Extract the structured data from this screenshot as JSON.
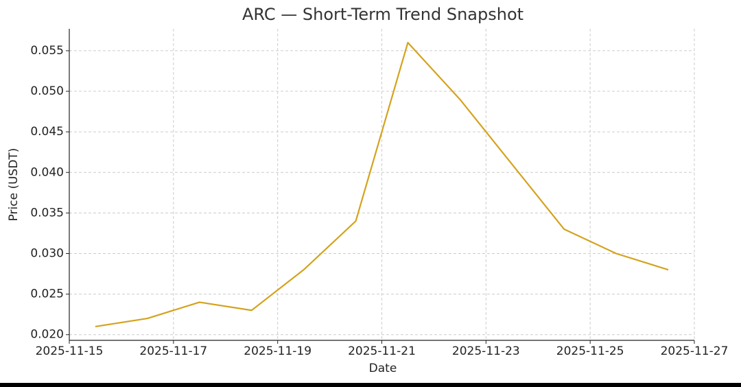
{
  "chart_data": {
    "type": "line",
    "title": "ARC — Short-Term Trend Snapshot",
    "x_label": "Date",
    "y_label": "Price (USDT)",
    "x": [
      "2025-11-15T12:00",
      "2025-11-16T12:00",
      "2025-11-17T12:00",
      "2025-11-18T12:00",
      "2025-11-19T12:00",
      "2025-11-20T12:00",
      "2025-11-21T12:00",
      "2025-11-22T12:00",
      "2025-11-23T12:00",
      "2025-11-24T12:00",
      "2025-11-25T12:00",
      "2025-11-26T12:00"
    ],
    "series": [
      {
        "color": "#d4a21c",
        "values": [
          0.021,
          0.022,
          0.024,
          0.023,
          0.028,
          0.034,
          0.056,
          0.049,
          0.041,
          0.033,
          0.03,
          0.028
        ]
      }
    ],
    "xlim": [
      "2025-11-15",
      "2025-11-27"
    ],
    "xticks": [
      "2025-11-15",
      "2025-11-17",
      "2025-11-19",
      "2025-11-21",
      "2025-11-23",
      "2025-11-25",
      "2025-11-27"
    ],
    "ylim": [
      0.0193,
      0.0577
    ],
    "yticks": [
      {
        "value": 0.02,
        "label": "0.020"
      },
      {
        "value": 0.025,
        "label": "0.025"
      },
      {
        "value": 0.03,
        "label": "0.030"
      },
      {
        "value": 0.035,
        "label": "0.035"
      },
      {
        "value": 0.04,
        "label": "0.040"
      },
      {
        "value": 0.045,
        "label": "0.045"
      },
      {
        "value": 0.05,
        "label": "0.050"
      },
      {
        "value": 0.055,
        "label": "0.055"
      }
    ],
    "grid": true
  }
}
